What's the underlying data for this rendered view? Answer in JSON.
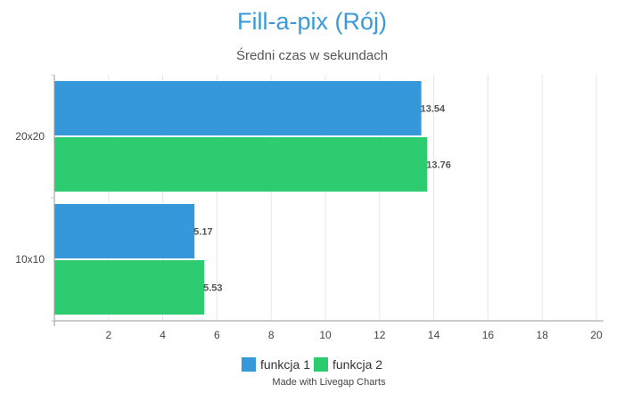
{
  "chart_data": {
    "type": "bar",
    "orientation": "horizontal",
    "title": "Fill-a-pix (Rój)",
    "subtitle": "Średni czas w sekundach",
    "categories": [
      "20x20",
      "10x10"
    ],
    "series": [
      {
        "name": "funkcja 1",
        "color": "#3498db",
        "values": [
          13.54,
          5.17
        ]
      },
      {
        "name": "funkcja 2",
        "color": "#2ecc71",
        "values": [
          13.76,
          5.53
        ]
      }
    ],
    "xlim": [
      0,
      20
    ],
    "xticks": [
      2,
      4,
      6,
      8,
      10,
      12,
      14,
      16,
      18,
      20
    ],
    "grid": true,
    "legend_position": "bottom",
    "title_color": "#3a9ad9"
  },
  "footer": {
    "credit": "Made with Livegap Charts"
  }
}
